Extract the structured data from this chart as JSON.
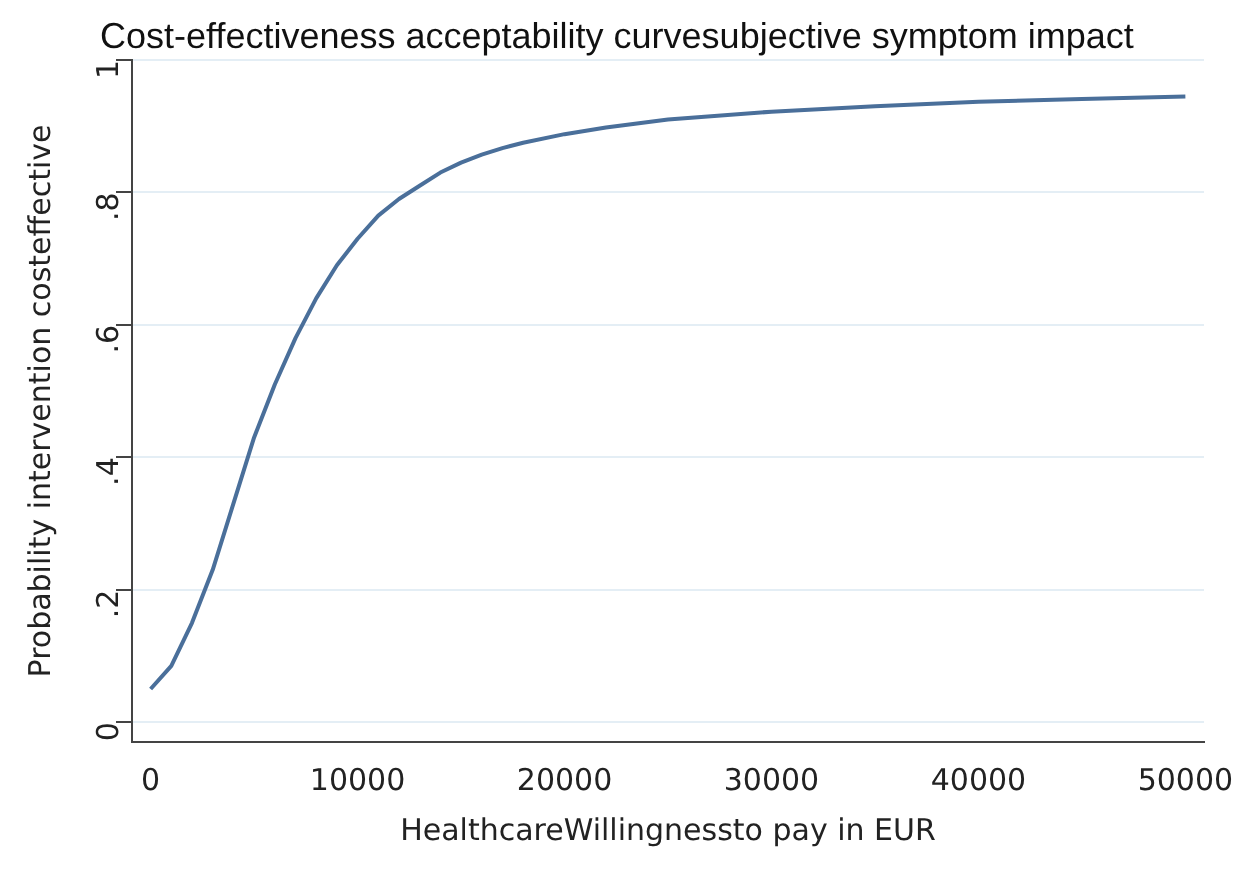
{
  "chart_data": {
    "type": "line",
    "title": "Cost-effectiveness acceptability curvesubjective symptom impact",
    "xlabel": "HealthcareWillingnessto pay in EUR",
    "ylabel": "Probability intervention costeffective",
    "x": [
      0,
      1000,
      2000,
      3000,
      4000,
      5000,
      6000,
      7000,
      8000,
      9000,
      10000,
      11000,
      12000,
      13000,
      14000,
      15000,
      16000,
      17000,
      18000,
      20000,
      22000,
      25000,
      30000,
      35000,
      40000,
      45000,
      50000
    ],
    "series": [
      {
        "color": "#4a6f9a",
        "values": [
          0.05,
          0.085,
          0.15,
          0.23,
          0.33,
          0.43,
          0.51,
          0.58,
          0.64,
          0.69,
          0.73,
          0.765,
          0.79,
          0.81,
          0.83,
          0.845,
          0.857,
          0.867,
          0.875,
          0.888,
          0.898,
          0.91,
          0.922,
          0.93,
          0.937,
          0.941,
          0.945
        ]
      }
    ],
    "xlim": [
      -900,
      50900
    ],
    "xticks": [
      0,
      10000,
      20000,
      30000,
      40000,
      50000
    ],
    "ylim": [
      -0.03,
      1
    ],
    "yticks": [
      {
        "value": 0,
        "label": "0"
      },
      {
        "value": 0.2,
        "label": ".2"
      },
      {
        "value": 0.4,
        "label": ".4"
      },
      {
        "value": 0.6,
        "label": ".6"
      },
      {
        "value": 0.8,
        "label": ".8"
      },
      {
        "value": 1,
        "label": "1"
      }
    ],
    "grid": "y",
    "legend": false,
    "marker": "none",
    "line_style": "solid"
  }
}
